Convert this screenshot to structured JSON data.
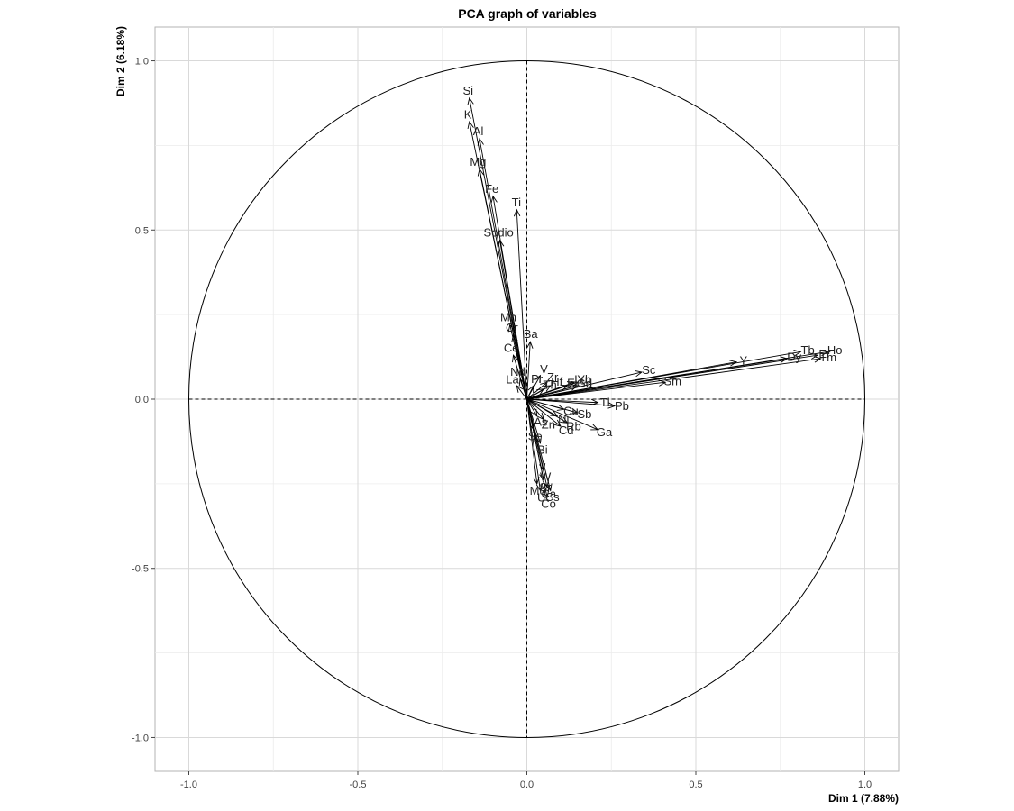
{
  "chart_data": {
    "type": "scatter",
    "subtype": "pca-variables-correlation-circle",
    "title": "PCA graph of variables",
    "xlabel": "Dim 1 (7.88%)",
    "ylabel": "Dim 2 (6.18%)",
    "xlim": [
      -1.1,
      1.1
    ],
    "ylim": [
      -1.1,
      1.1
    ],
    "xticks": [
      -1.0,
      -0.5,
      0.0,
      0.5,
      1.0
    ],
    "yticks": [
      -1.0,
      -0.5,
      0.0,
      0.5,
      1.0
    ],
    "xtick_labels": [
      "-1.0",
      "-0.5",
      "0.0",
      "0.5",
      "1.0"
    ],
    "ytick_labels": [
      "-1.0",
      "-0.5",
      "0.0",
      "0.5",
      "1.0"
    ],
    "grid": true,
    "unit_circle": true,
    "reference_lines": "dashed at x=0 and y=0",
    "colors": {
      "arrow": "#000000",
      "grid": "#d9d9d9",
      "panel_border": "#b3b3b3",
      "label": "#222222"
    },
    "variables": [
      {
        "name": "Si",
        "x": -0.17,
        "y": 0.89
      },
      {
        "name": "K",
        "x": -0.17,
        "y": 0.82
      },
      {
        "name": "Al",
        "x": -0.14,
        "y": 0.77
      },
      {
        "name": "Mg",
        "x": -0.14,
        "y": 0.68
      },
      {
        "name": "Fe",
        "x": -0.1,
        "y": 0.6
      },
      {
        "name": "Ti",
        "x": -0.03,
        "y": 0.56
      },
      {
        "name": "Sodio",
        "x": -0.08,
        "y": 0.47
      },
      {
        "name": "Mn",
        "x": -0.05,
        "y": 0.22
      },
      {
        "name": "Cr",
        "x": -0.04,
        "y": 0.19
      },
      {
        "name": "Ba",
        "x": 0.01,
        "y": 0.17
      },
      {
        "name": "Ce",
        "x": -0.04,
        "y": 0.13
      },
      {
        "name": "V",
        "x": 0.04,
        "y": 0.07
      },
      {
        "name": "Nd",
        "x": -0.02,
        "y": 0.06
      },
      {
        "name": "La",
        "x": -0.03,
        "y": 0.04
      },
      {
        "name": "Pr",
        "x": 0.02,
        "y": 0.04
      },
      {
        "name": "Zr",
        "x": 0.06,
        "y": 0.05
      },
      {
        "name": "Hf",
        "x": 0.07,
        "y": 0.04
      },
      {
        "name": "Th",
        "x": 0.05,
        "y": 0.03
      },
      {
        "name": "Yb",
        "x": 0.15,
        "y": 0.05
      },
      {
        "name": "Sc",
        "x": 0.34,
        "y": 0.08
      },
      {
        "name": "Sm",
        "x": 0.41,
        "y": 0.05
      },
      {
        "name": "Y",
        "x": 0.62,
        "y": 0.11
      },
      {
        "name": "Dy",
        "x": 0.77,
        "y": 0.12
      },
      {
        "name": "Tb",
        "x": 0.81,
        "y": 0.14
      },
      {
        "name": "Er",
        "x": 0.86,
        "y": 0.13
      },
      {
        "name": "Ho",
        "x": 0.89,
        "y": 0.14
      },
      {
        "name": "Tm",
        "x": 0.87,
        "y": 0.12
      },
      {
        "name": "Gd",
        "x": 0.15,
        "y": 0.04
      },
      {
        "name": "Eu",
        "x": 0.12,
        "y": 0.04
      },
      {
        "name": "Lu",
        "x": 0.14,
        "y": 0.05
      },
      {
        "name": "Tl",
        "x": 0.21,
        "y": -0.01
      },
      {
        "name": "Pb",
        "x": 0.26,
        "y": -0.02
      },
      {
        "name": "Sb",
        "x": 0.15,
        "y": -0.04
      },
      {
        "name": "Cu",
        "x": 0.11,
        "y": -0.03
      },
      {
        "name": "Ni",
        "x": 0.09,
        "y": -0.05
      },
      {
        "name": "Cd",
        "x": 0.1,
        "y": -0.08
      },
      {
        "name": "Rb",
        "x": 0.12,
        "y": -0.07
      },
      {
        "name": "Ga",
        "x": 0.21,
        "y": -0.09
      },
      {
        "name": "Zn",
        "x": 0.05,
        "y": -0.06
      },
      {
        "name": "As",
        "x": 0.03,
        "y": -0.05
      },
      {
        "name": "Se",
        "x": 0.02,
        "y": -0.09
      },
      {
        "name": "Bi",
        "x": 0.04,
        "y": -0.13
      },
      {
        "name": "W",
        "x": 0.05,
        "y": -0.21
      },
      {
        "name": "Sr",
        "x": 0.05,
        "y": -0.24
      },
      {
        "name": "Ca",
        "x": 0.06,
        "y": -0.26
      },
      {
        "name": "Cs",
        "x": 0.07,
        "y": -0.27
      },
      {
        "name": "Co",
        "x": 0.06,
        "y": -0.29
      },
      {
        "name": "U",
        "x": 0.04,
        "y": -0.27
      },
      {
        "name": "Mo",
        "x": 0.03,
        "y": -0.25
      }
    ]
  }
}
